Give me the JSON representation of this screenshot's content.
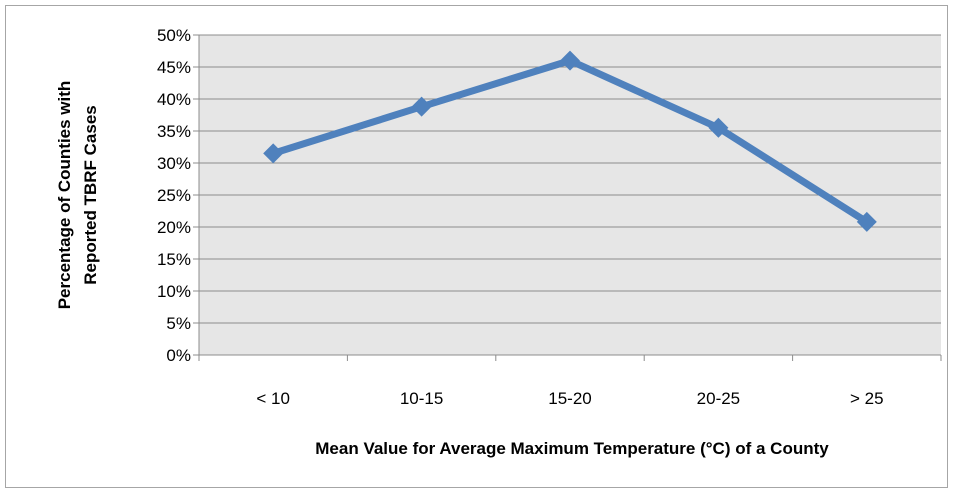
{
  "chart_data": {
    "type": "line",
    "title": "",
    "xlabel": "Mean Value for Average Maximum Temperature (°C) of a County",
    "ylabel_lines": [
      "Percentage of Counties with",
      "Reported TBRF Cases"
    ],
    "categories": [
      "< 10",
      "10-15",
      "15-20",
      "20-25",
      "> 25"
    ],
    "series": [
      {
        "values": [
          31.5,
          38.8,
          46.0,
          35.5,
          20.8
        ]
      }
    ],
    "ylim": [
      0,
      50
    ],
    "y_ticks": [
      0,
      5,
      10,
      15,
      20,
      25,
      30,
      35,
      40,
      45,
      50
    ],
    "y_tick_format": "percent",
    "grid": true,
    "legend": "none",
    "colors": {
      "line": "#4f81bd",
      "plot_background": "#e6e6e6",
      "gridline": "#8c8c8c",
      "axis": "#8c8c8c",
      "frame": "#a6a6a6"
    },
    "marker": "diamond"
  }
}
